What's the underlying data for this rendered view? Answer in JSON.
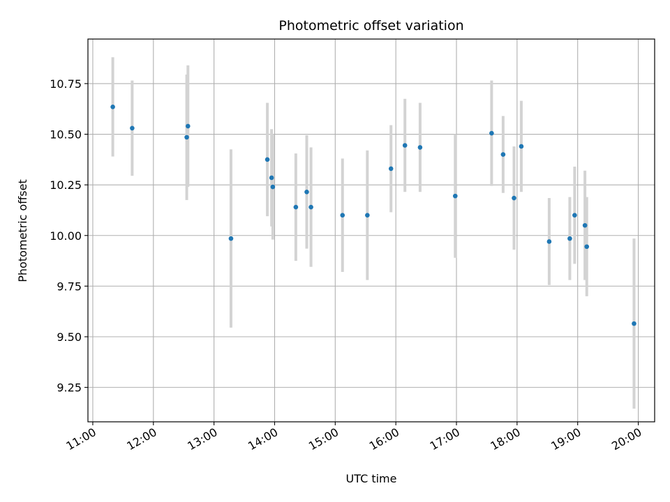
{
  "chart_data": {
    "type": "scatter",
    "title": "Photometric offset variation",
    "xlabel": "UTC time",
    "ylabel": "Photometric offset",
    "x_unit": "hour",
    "xlim": [
      10.92,
      20.27
    ],
    "ylim": [
      9.08,
      10.97
    ],
    "x_ticks": [
      {
        "value": 11,
        "label": "11:00"
      },
      {
        "value": 12,
        "label": "12:00"
      },
      {
        "value": 13,
        "label": "13:00"
      },
      {
        "value": 14,
        "label": "14:00"
      },
      {
        "value": 15,
        "label": "15:00"
      },
      {
        "value": 16,
        "label": "16:00"
      },
      {
        "value": 17,
        "label": "17:00"
      },
      {
        "value": 18,
        "label": "18:00"
      },
      {
        "value": 19,
        "label": "19:00"
      },
      {
        "value": 20,
        "label": "20:00"
      }
    ],
    "y_ticks": [
      {
        "value": 9.25,
        "label": "9.25"
      },
      {
        "value": 9.5,
        "label": "9.50"
      },
      {
        "value": 9.75,
        "label": "9.75"
      },
      {
        "value": 10.0,
        "label": "10.00"
      },
      {
        "value": 10.25,
        "label": "10.25"
      },
      {
        "value": 10.5,
        "label": "10.50"
      },
      {
        "value": 10.75,
        "label": "10.75"
      }
    ],
    "grid": true,
    "marker_color": "#1f77b4",
    "errorbar_color": "#d3d3d3",
    "points": [
      {
        "x": 11.33,
        "y": 10.635,
        "err": 0.245
      },
      {
        "x": 11.65,
        "y": 10.53,
        "err": 0.235
      },
      {
        "x": 12.55,
        "y": 10.485,
        "err": 0.31
      },
      {
        "x": 12.57,
        "y": 10.54,
        "err": 0.3
      },
      {
        "x": 13.28,
        "y": 9.985,
        "err": 0.44
      },
      {
        "x": 13.88,
        "y": 10.375,
        "err": 0.28
      },
      {
        "x": 13.95,
        "y": 10.285,
        "err": 0.24
      },
      {
        "x": 13.97,
        "y": 10.24,
        "err": 0.26
      },
      {
        "x": 14.35,
        "y": 10.14,
        "err": 0.265
      },
      {
        "x": 14.53,
        "y": 10.215,
        "err": 0.28
      },
      {
        "x": 14.6,
        "y": 10.14,
        "err": 0.295
      },
      {
        "x": 15.12,
        "y": 10.1,
        "err": 0.28
      },
      {
        "x": 15.53,
        "y": 10.1,
        "err": 0.32
      },
      {
        "x": 15.92,
        "y": 10.33,
        "err": 0.215
      },
      {
        "x": 16.15,
        "y": 10.445,
        "err": 0.23
      },
      {
        "x": 16.4,
        "y": 10.435,
        "err": 0.22
      },
      {
        "x": 16.98,
        "y": 10.195,
        "err": 0.305
      },
      {
        "x": 17.58,
        "y": 10.505,
        "err": 0.26
      },
      {
        "x": 17.77,
        "y": 10.4,
        "err": 0.19
      },
      {
        "x": 17.95,
        "y": 10.185,
        "err": 0.255
      },
      {
        "x": 18.07,
        "y": 10.44,
        "err": 0.225
      },
      {
        "x": 18.53,
        "y": 9.97,
        "err": 0.215
      },
      {
        "x": 18.87,
        "y": 9.985,
        "err": 0.205
      },
      {
        "x": 18.95,
        "y": 10.1,
        "err": 0.24
      },
      {
        "x": 19.12,
        "y": 10.05,
        "err": 0.27
      },
      {
        "x": 19.15,
        "y": 9.945,
        "err": 0.245
      },
      {
        "x": 19.93,
        "y": 9.565,
        "err": 0.42
      }
    ]
  }
}
